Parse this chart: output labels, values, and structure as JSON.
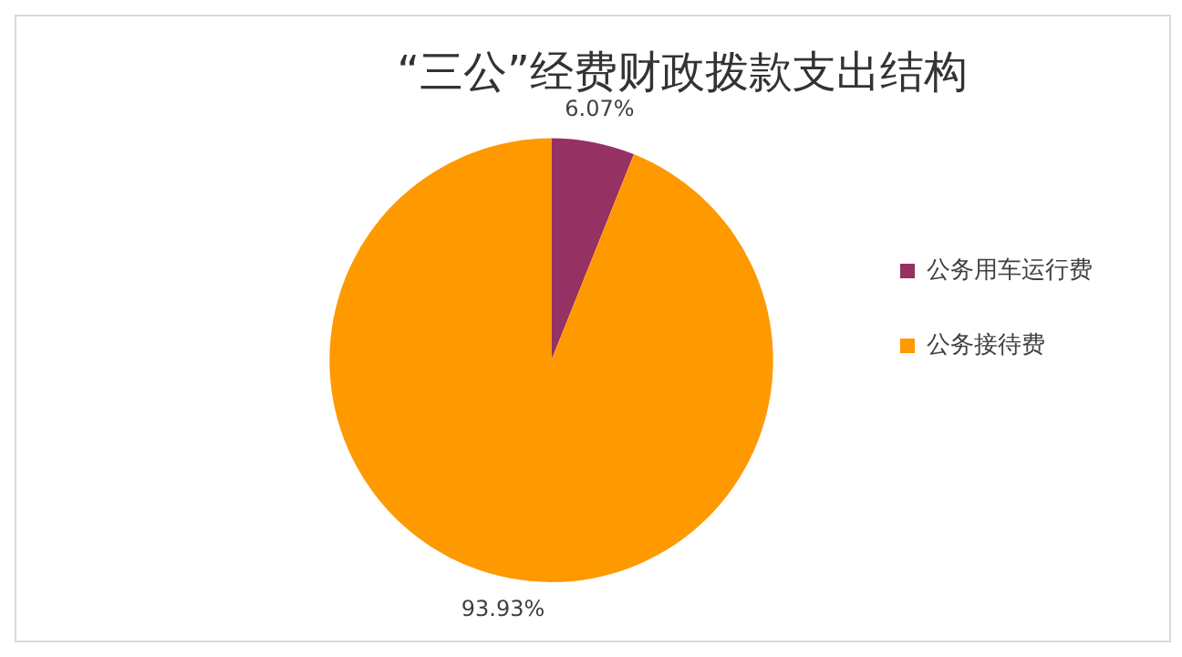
{
  "chart_data": {
    "type": "pie",
    "title": "“三公”经费财政拨款支出结构",
    "categories": [
      "公务用车运行费",
      "公务接待费"
    ],
    "values": [
      6.07,
      93.93
    ],
    "colors": [
      "#953163",
      "#ff9900"
    ],
    "value_labels": [
      "6.07%",
      "93.93%"
    ],
    "legend": "right"
  }
}
